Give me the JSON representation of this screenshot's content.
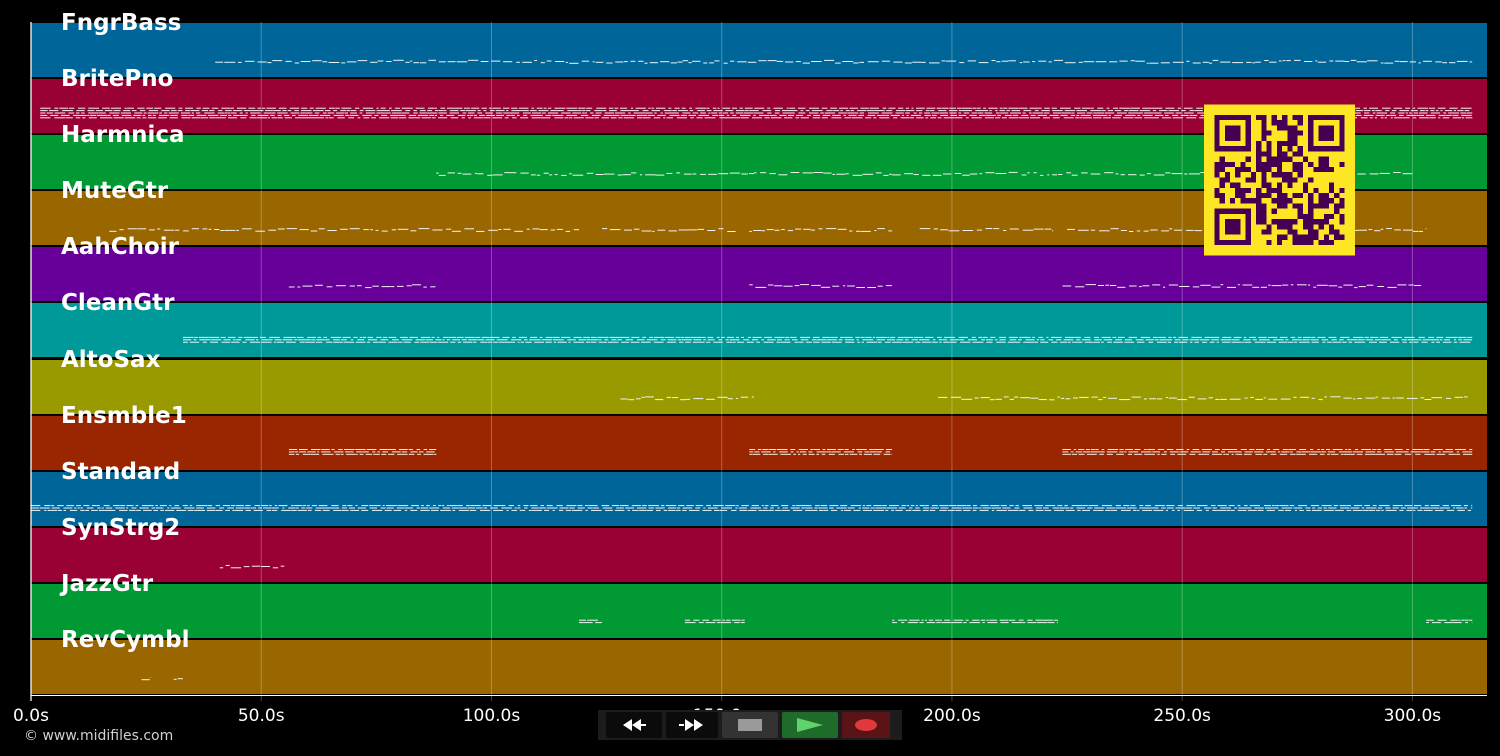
{
  "timeline": {
    "max_seconds": 316.2,
    "ticks": [
      {
        "seconds": 0,
        "label": "0.0s"
      },
      {
        "seconds": 50,
        "label": "50.0s"
      },
      {
        "seconds": 100,
        "label": "100.0s"
      },
      {
        "seconds": 150,
        "label": "150.0s"
      },
      {
        "seconds": 200,
        "label": "200.0s"
      },
      {
        "seconds": 250,
        "label": "250.0s"
      },
      {
        "seconds": 300,
        "label": "300.0s"
      }
    ]
  },
  "tracks": [
    {
      "name": "FngrBass",
      "color": "#006699",
      "segments": [
        [
          40,
          313
        ]
      ],
      "density": 1
    },
    {
      "name": "BritePno",
      "color": "#990033",
      "segments": [
        [
          2,
          313
        ]
      ],
      "density": 5
    },
    {
      "name": "Harmnica",
      "color": "#009933",
      "segments": [
        [
          88,
          300
        ]
      ],
      "density": 1
    },
    {
      "name": "MuteGtr",
      "color": "#996600",
      "segments": [
        [
          17,
          119
        ],
        [
          124,
          153
        ],
        [
          156,
          187
        ],
        [
          193,
          222
        ],
        [
          225,
          303
        ]
      ],
      "density": 1
    },
    {
      "name": "AahChoir",
      "color": "#660099",
      "segments": [
        [
          56,
          88
        ],
        [
          156,
          187
        ],
        [
          224,
          302
        ]
      ],
      "density": 1
    },
    {
      "name": "CleanGtr",
      "color": "#009999",
      "segments": [
        [
          33,
          313
        ]
      ],
      "density": 3
    },
    {
      "name": "AltoSax",
      "color": "#999900",
      "segments": [
        [
          128,
          157
        ],
        [
          197,
          312
        ]
      ],
      "density": 1
    },
    {
      "name": "Ensmble1",
      "color": "#992600",
      "segments": [
        [
          56,
          88
        ],
        [
          156,
          187
        ],
        [
          224,
          313
        ]
      ],
      "density": 3
    },
    {
      "name": "Standard",
      "color": "#006699",
      "segments": [
        [
          0,
          313
        ]
      ],
      "density": 3
    },
    {
      "name": "SynStrg2",
      "color": "#990033",
      "segments": [
        [
          41,
          55
        ]
      ],
      "density": 1
    },
    {
      "name": "JazzGtr",
      "color": "#009933",
      "segments": [
        [
          119,
          124
        ],
        [
          142,
          155
        ],
        [
          187,
          223
        ],
        [
          303,
          313
        ]
      ],
      "density": 2
    },
    {
      "name": "RevCymbl",
      "color": "#996600",
      "segments": [
        [
          24,
          26
        ],
        [
          31,
          33
        ]
      ],
      "density": 1
    }
  ],
  "qr_code": {
    "foreground": "#440154",
    "background": "#fde725"
  },
  "footer": {
    "copyright": "© www.midifiles.com"
  },
  "transport": {
    "buttons": [
      {
        "id": "rewind",
        "icon": "rewind-icon"
      },
      {
        "id": "fast-forward",
        "icon": "fast-forward-icon"
      },
      {
        "id": "stop",
        "icon": "stop-icon"
      },
      {
        "id": "play",
        "icon": "play-icon",
        "color": "#5fd46a"
      },
      {
        "id": "record",
        "icon": "record-icon",
        "color": "#e0393e"
      }
    ]
  }
}
